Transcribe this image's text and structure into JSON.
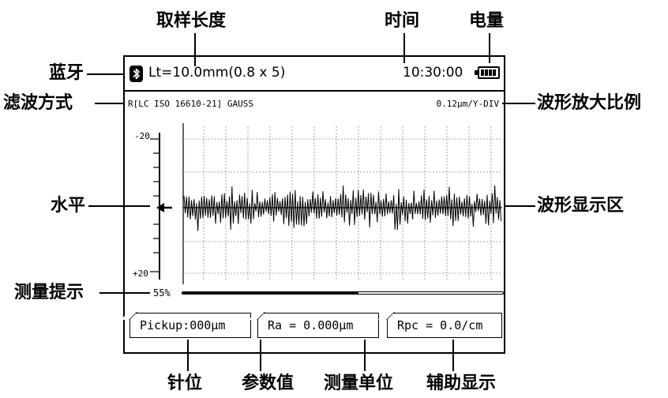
{
  "callouts": {
    "sampling_length": "取样长度",
    "time": "时间",
    "battery": "电量",
    "bluetooth": "蓝牙",
    "filter_method": "滤波方式",
    "waveform_scale": "波形放大比例",
    "level": "水平",
    "waveform_area": "波形显示区",
    "measure_hint": "测量提示",
    "stylus_position": "针位",
    "parameter_value": "参数值",
    "measure_unit": "测量单位",
    "aux_display": "辅助显示"
  },
  "screen": {
    "sampling_length": "Lt=10.0mm(0.8 x 5)",
    "time": "10:30:00",
    "filter": "R[LC ISO 16610-21]  GAUSS",
    "y_scale": "0.12μm/Y-DIV",
    "level_top": "-20",
    "level_bottom": "+20",
    "progress_label": "55%",
    "progress_value": 0.55,
    "pickup": "Pickup:000μm",
    "ra": "Ra = 0.000μm",
    "rpc": "Rpc = 0.0/cm"
  },
  "colors": {
    "foreground": "#000000",
    "background": "#ffffff",
    "grid": "#8a8a8a"
  },
  "icons": [
    "bluetooth-icon",
    "battery-icon",
    "left-arrow-icon"
  ]
}
